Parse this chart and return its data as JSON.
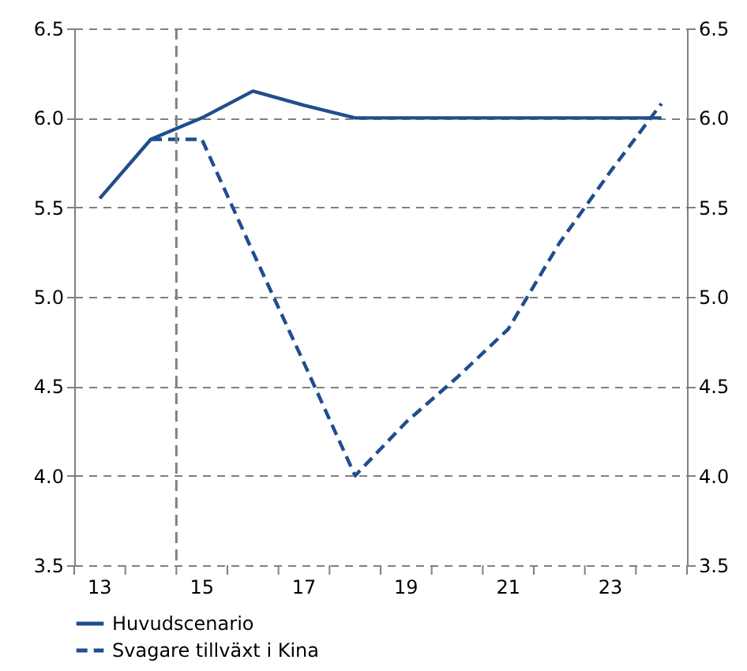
{
  "chart_data": {
    "type": "line",
    "x": [
      13.5,
      14.5,
      15.5,
      16.5,
      17.5,
      18.5,
      19.5,
      20.5,
      21.5,
      22.5,
      23.5,
      24.5
    ],
    "series": [
      {
        "name": "Huvudscenario",
        "color": "#1f4e8c",
        "line_style": "solid",
        "values": [
          5.55,
          5.88,
          6.0,
          6.15,
          6.07,
          6.0,
          6.0,
          6.0,
          6.0,
          6.0,
          6.0,
          6.0
        ]
      },
      {
        "name": "Svagare tillväxt i Kina",
        "color": "#1f4e8c",
        "line_style": "dashed",
        "axis": "y2",
        "values": [
          null,
          5.88,
          5.88,
          5.25,
          4.63,
          4.0,
          4.3,
          4.55,
          4.82,
          5.3,
          5.7,
          6.08
        ]
      }
    ],
    "xlim": [
      13,
      25
    ],
    "xticks": [
      {
        "value": 13,
        "label": null
      },
      {
        "value": 13.5,
        "label": "13"
      },
      {
        "value": 14,
        "label": null
      },
      {
        "value": 15,
        "label": null
      },
      {
        "value": 15.5,
        "label": "15"
      },
      {
        "value": 16,
        "label": null
      },
      {
        "value": 17,
        "label": null
      },
      {
        "value": 17.5,
        "label": "17"
      },
      {
        "value": 18,
        "label": null
      },
      {
        "value": 19,
        "label": null
      },
      {
        "value": 19.5,
        "label": "19"
      },
      {
        "value": 20,
        "label": null
      },
      {
        "value": 21,
        "label": null
      },
      {
        "value": 21.5,
        "label": "21"
      },
      {
        "value": 22,
        "label": null
      },
      {
        "value": 23,
        "label": null
      },
      {
        "value": 23.5,
        "label": "23"
      },
      {
        "value": 24,
        "label": null
      },
      {
        "value": 25,
        "label": null
      }
    ],
    "ylim": [
      3.5,
      6.5
    ],
    "yticks": [
      {
        "value": 3.5,
        "label": "3.5"
      },
      {
        "value": 4,
        "label": "4.0"
      },
      {
        "value": 4.5,
        "label": "4.5"
      },
      {
        "value": 5,
        "label": "5.0"
      },
      {
        "value": 5.5,
        "label": "5.5"
      },
      {
        "value": 6,
        "label": "6.0"
      },
      {
        "value": 6.5,
        "label": "6.5"
      }
    ],
    "y2lim": [
      3.5,
      6.5
    ],
    "y2ticks": [
      {
        "value": 3.5,
        "label": "3.5"
      },
      {
        "value": 4,
        "label": "4.0"
      },
      {
        "value": 4.5,
        "label": "4.5"
      },
      {
        "value": 5,
        "label": "5.0"
      },
      {
        "value": 5.5,
        "label": "5.5"
      },
      {
        "value": 6,
        "label": "6.0"
      },
      {
        "value": 6.5,
        "label": "6.5"
      }
    ],
    "ref_lines": [
      {
        "axis": "x",
        "value": 15,
        "color": "#808080",
        "line_style": "dashed"
      }
    ],
    "grid": "y",
    "legend": "bottom"
  }
}
